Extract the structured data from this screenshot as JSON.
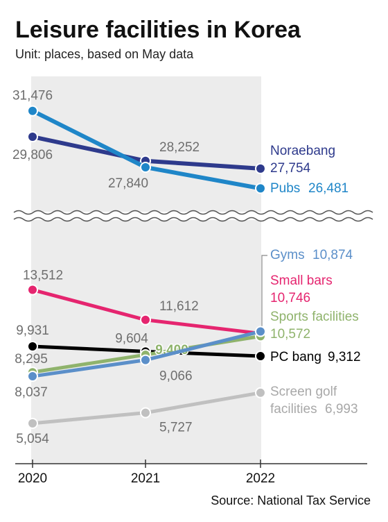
{
  "chart_data": {
    "type": "line",
    "title": "Leisure facilities in Korea",
    "subtitle": "Unit: places, based on May data",
    "source": "Source: National Tax Service",
    "categories": [
      "2020",
      "2021",
      "2022"
    ],
    "ylim": [
      2500,
      17800
    ],
    "y2lim": [
      25200,
      33700
    ],
    "series": [
      {
        "name": "Noraebang",
        "color": "#2e3a8c",
        "axis": "y2",
        "values": [
          29806,
          28252,
          27754
        ],
        "value_labels": [
          "29,806",
          "28,252",
          "27,754"
        ]
      },
      {
        "name": "Pubs",
        "color": "#1f86c8",
        "axis": "y2",
        "values": [
          31476,
          27840,
          26481
        ],
        "value_labels": [
          "31,476",
          "27,840",
          "26,481"
        ]
      },
      {
        "name": "Small bars",
        "color": "#e5256f",
        "values": [
          13512,
          11612,
          10746
        ],
        "value_labels": [
          "13,512",
          "11,612",
          "10,746"
        ]
      },
      {
        "name": "PC bang",
        "color": "#000000",
        "values": [
          9931,
          9604,
          9312
        ],
        "value_labels": [
          "9,931",
          "9,604",
          "9,312"
        ]
      },
      {
        "name": "Sports facilities",
        "color": "#8fb36c",
        "values": [
          8295,
          9400,
          10572
        ],
        "value_labels": [
          "8,295",
          "9,400",
          "10,572"
        ]
      },
      {
        "name": "Gyms",
        "color": "#5b8fc9",
        "values": [
          8037,
          9066,
          10874
        ],
        "value_labels": [
          "8,037",
          "9,066",
          "10,874"
        ]
      },
      {
        "name": "Screen golf facilities",
        "color": "#c0c0c0",
        "values": [
          5054,
          5727,
          6993
        ],
        "value_labels": [
          "5,054",
          "5,727",
          "6,993"
        ]
      }
    ]
  }
}
